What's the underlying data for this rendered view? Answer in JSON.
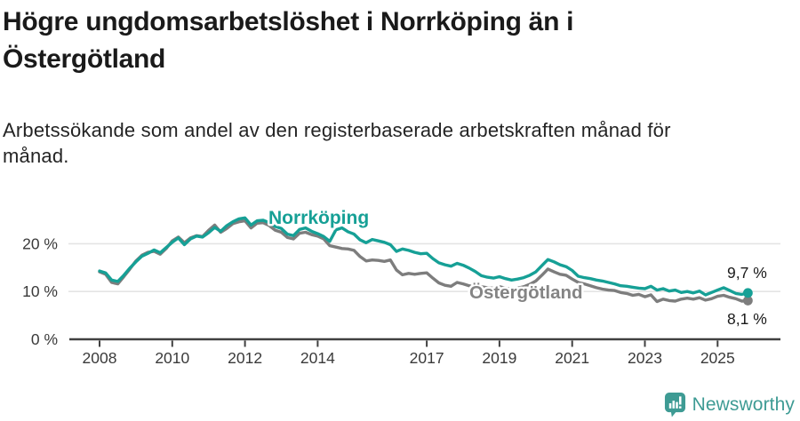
{
  "header": {
    "title_lines": [
      "Högre ungdomsarbetslöshet i Norrköping än i",
      "Östergötland"
    ],
    "subtitle_lines": [
      "Arbetssökande som andel av den registerbaserade arbetskraften månad för",
      "månad."
    ]
  },
  "colors": {
    "norrkoping": "#16A096",
    "ostergotland": "#7D7D7D",
    "ostergotland_label": "#848484",
    "title_text": "#1a1a1a",
    "axis": "#404040",
    "tick_label": "#3a3a3a",
    "grid": "#e4e4e4",
    "value_label": "#1a1a1a",
    "brand": "#3E9B94",
    "background": "#ffffff"
  },
  "footer": {
    "brand": "Newsworthy"
  },
  "chart_data": {
    "type": "line",
    "title": "Högre ungdomsarbetslöshet i Norrköping än i Östergötland",
    "subtitle": "Arbetssökande som andel av den registerbaserade arbetskraften månad för månad.",
    "unit": "%",
    "x_start_year": 2008.0,
    "x_step_years": 0.166667,
    "xlim": [
      2007.2,
      2026.8
    ],
    "ylim": [
      0,
      27.3
    ],
    "grid": "horizontal",
    "legend_position": "inline-labels",
    "x_ticks": [
      {
        "year": 2008,
        "label": "2008"
      },
      {
        "year": 2010,
        "label": "2010"
      },
      {
        "year": 2012,
        "label": "2012"
      },
      {
        "year": 2014,
        "label": "2014"
      },
      {
        "year": 2017,
        "label": "2017"
      },
      {
        "year": 2019,
        "label": "2019"
      },
      {
        "year": 2021,
        "label": "2021"
      },
      {
        "year": 2023,
        "label": "2023"
      },
      {
        "year": 2025,
        "label": "2025"
      }
    ],
    "y_ticks": [
      {
        "value": 0,
        "label": "0 %"
      },
      {
        "value": 10,
        "label": "10 %"
      },
      {
        "value": 20,
        "label": "20 %"
      }
    ],
    "series": [
      {
        "name": "Östergötland",
        "end_label": "8,1 %",
        "end_value": 8.1,
        "values": [
          14.1,
          13.6,
          11.9,
          11.6,
          13.1,
          14.7,
          16.4,
          17.6,
          18.2,
          18.4,
          17.8,
          19.0,
          20.6,
          21.4,
          20.2,
          21.2,
          21.7,
          21.5,
          22.8,
          23.9,
          22.4,
          23.2,
          24.2,
          24.6,
          24.8,
          23.3,
          24.3,
          24.4,
          23.8,
          22.8,
          22.4,
          21.3,
          21.0,
          22.2,
          22.4,
          21.9,
          21.6,
          21.0,
          19.6,
          19.3,
          19.0,
          18.9,
          18.6,
          17.3,
          16.4,
          16.6,
          16.5,
          16.3,
          16.6,
          14.5,
          13.5,
          13.8,
          13.6,
          13.8,
          13.9,
          12.8,
          11.8,
          11.3,
          11.1,
          11.9,
          11.6,
          11.2,
          10.9,
          11.0,
          10.8,
          10.7,
          11.0,
          10.7,
          10.5,
          10.7,
          11.0,
          11.5,
          12.2,
          13.4,
          14.7,
          14.1,
          13.6,
          13.4,
          12.6,
          11.9,
          11.6,
          11.2,
          10.8,
          10.5,
          10.3,
          10.2,
          9.8,
          9.6,
          9.2,
          9.4,
          8.9,
          9.3,
          7.9,
          8.4,
          8.1,
          8.0,
          8.4,
          8.6,
          8.4,
          8.7,
          8.2,
          8.5,
          9.0,
          9.2,
          8.8,
          8.5,
          8.0,
          8.1
        ]
      },
      {
        "name": "Norrköping",
        "end_label": "9,7 %",
        "end_value": 9.7,
        "values": [
          14.3,
          13.9,
          12.4,
          12.1,
          13.4,
          14.9,
          16.2,
          17.4,
          18.0,
          18.7,
          18.1,
          19.2,
          20.3,
          21.2,
          19.8,
          21.0,
          21.6,
          21.4,
          22.3,
          23.4,
          22.6,
          23.8,
          24.6,
          25.2,
          25.4,
          23.9,
          24.8,
          24.9,
          24.4,
          23.6,
          23.2,
          22.0,
          21.7,
          23.0,
          23.3,
          22.6,
          22.1,
          21.5,
          20.5,
          22.9,
          23.3,
          22.5,
          22.0,
          20.8,
          20.2,
          20.9,
          20.6,
          20.3,
          19.8,
          18.4,
          18.9,
          18.6,
          18.2,
          17.9,
          18.0,
          16.9,
          16.0,
          15.6,
          15.3,
          15.9,
          15.5,
          14.9,
          14.2,
          13.3,
          13.0,
          12.8,
          13.1,
          12.7,
          12.4,
          12.6,
          12.9,
          13.4,
          14.1,
          15.4,
          16.7,
          16.2,
          15.6,
          15.2,
          14.4,
          13.2,
          12.9,
          12.7,
          12.4,
          12.2,
          11.9,
          11.6,
          11.2,
          11.1,
          10.9,
          10.7,
          10.6,
          11.1,
          10.3,
          10.6,
          10.1,
          10.3,
          9.8,
          10.0,
          9.7,
          10.1,
          9.3,
          9.8,
          10.3,
          10.8,
          10.2,
          9.6,
          9.4,
          9.7
        ]
      }
    ]
  }
}
